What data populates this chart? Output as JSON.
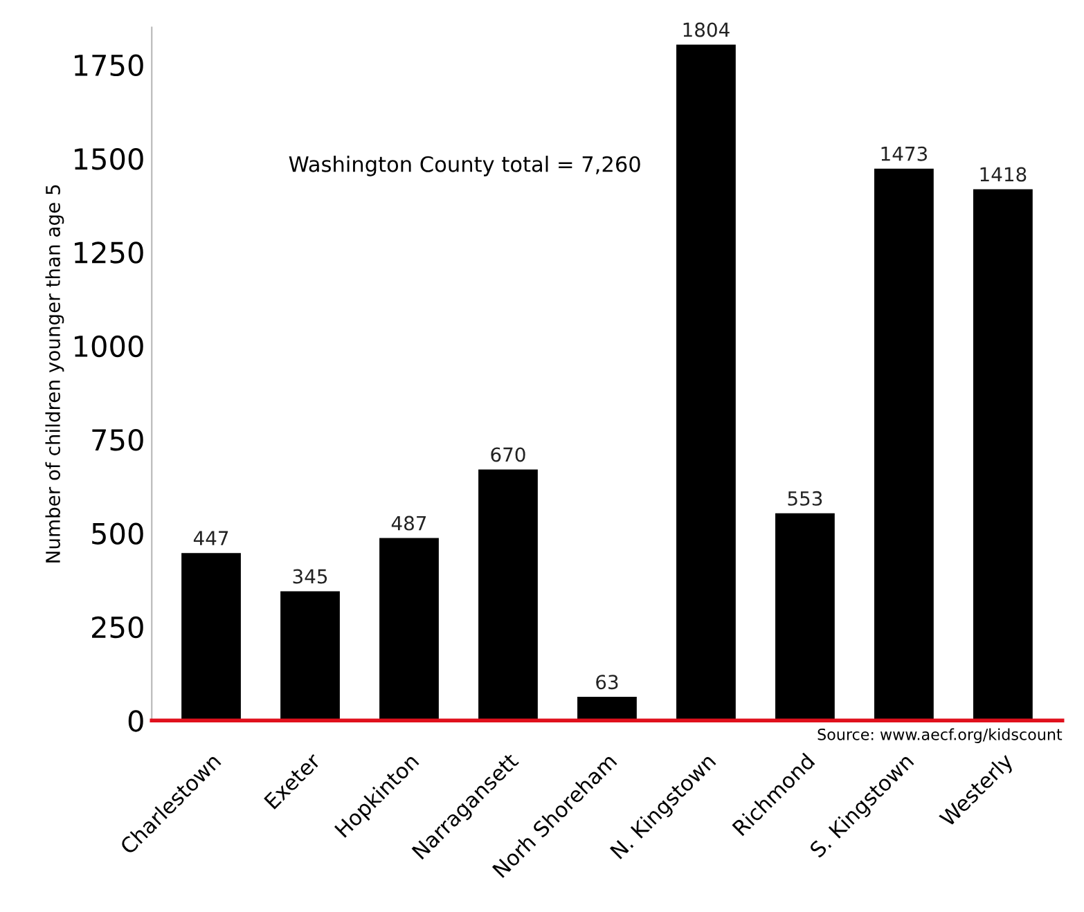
{
  "chart_data": {
    "type": "bar",
    "ylabel": "Number of children younger than age 5",
    "categories": [
      "Charlestown",
      "Exeter",
      "Hopkinton",
      "Narragansett",
      "Norh Shoreham",
      "N. Kingstown",
      "Richmond",
      "S. Kingstown",
      "Westerly"
    ],
    "values": [
      447,
      345,
      487,
      670,
      63,
      1804,
      553,
      1473,
      1418
    ],
    "color": "#000000",
    "data_labels": true,
    "ylim": [
      0,
      1850
    ],
    "yticks": [
      0,
      250,
      500,
      750,
      1000,
      1250,
      1500,
      1750
    ],
    "grid": false,
    "annotations": [
      "Washington County total = 7,260",
      "Source: www.aecf.org/kidscount"
    ]
  }
}
